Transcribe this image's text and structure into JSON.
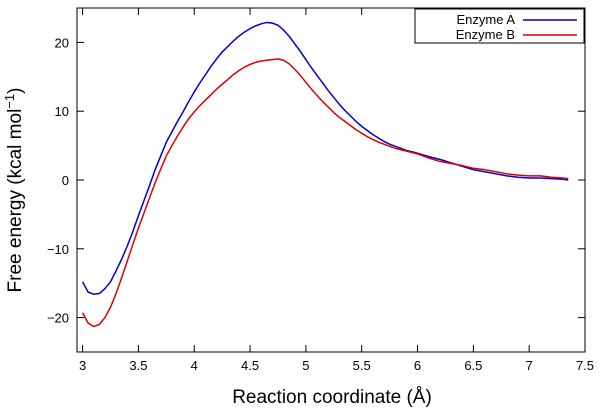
{
  "chart_data": {
    "type": "line",
    "title": "",
    "xlabel": "Reaction coordinate (Å)",
    "ylabel_main": "Free energy (kcal mol",
    "ylabel_sup": "−1",
    "ylabel_tail": ")",
    "xlim": [
      2.95,
      7.5
    ],
    "ylim": [
      -25,
      25
    ],
    "xticks": [
      3,
      3.5,
      4,
      4.5,
      5,
      5.5,
      6,
      6.5,
      7,
      7.5
    ],
    "xtick_labels": [
      "3",
      "3.5",
      "4",
      "4.5",
      "5",
      "5.5",
      "6",
      "6.5",
      "7",
      "7.5"
    ],
    "yticks": [
      -20,
      -10,
      0,
      10,
      20
    ],
    "ytick_labels": [
      "−20",
      "−10",
      "0",
      "10",
      "20"
    ],
    "grid": false,
    "legend_position": "top-right",
    "series": [
      {
        "name": "Enzyme A",
        "color": "#0000cc",
        "x": [
          3.0,
          3.05,
          3.1,
          3.15,
          3.2,
          3.25,
          3.3,
          3.35,
          3.4,
          3.45,
          3.5,
          3.55,
          3.6,
          3.65,
          3.7,
          3.75,
          3.8,
          3.85,
          3.9,
          3.95,
          4.0,
          4.05,
          4.1,
          4.15,
          4.2,
          4.25,
          4.3,
          4.35,
          4.4,
          4.45,
          4.5,
          4.55,
          4.6,
          4.65,
          4.7,
          4.75,
          4.8,
          4.85,
          4.9,
          4.95,
          5.0,
          5.05,
          5.1,
          5.15,
          5.2,
          5.25,
          5.3,
          5.35,
          5.4,
          5.45,
          5.5,
          5.55,
          5.6,
          5.65,
          5.7,
          5.75,
          5.8,
          5.85,
          5.9,
          5.95,
          6.0,
          6.1,
          6.2,
          6.3,
          6.4,
          6.5,
          6.6,
          6.7,
          6.8,
          6.9,
          7.0,
          7.1,
          7.2,
          7.3,
          7.35
        ],
        "y": [
          -14.8,
          -16.3,
          -16.6,
          -16.5,
          -15.8,
          -14.8,
          -13.2,
          -11.5,
          -9.6,
          -7.5,
          -5.2,
          -3.0,
          -0.8,
          1.5,
          3.5,
          5.5,
          7.0,
          8.5,
          9.9,
          11.4,
          12.8,
          14.1,
          15.3,
          16.5,
          17.6,
          18.6,
          19.4,
          20.2,
          20.9,
          21.5,
          22.0,
          22.4,
          22.7,
          22.9,
          22.8,
          22.5,
          21.8,
          20.9,
          19.8,
          18.7,
          17.5,
          16.3,
          15.2,
          14.1,
          13.0,
          12.0,
          11.0,
          10.1,
          9.3,
          8.5,
          7.8,
          7.2,
          6.6,
          6.1,
          5.6,
          5.2,
          4.9,
          4.6,
          4.3,
          4.1,
          3.9,
          3.4,
          3.0,
          2.5,
          2.0,
          1.5,
          1.2,
          0.9,
          0.6,
          0.4,
          0.3,
          0.3,
          0.2,
          0.1,
          0.0
        ]
      },
      {
        "name": "Enzyme B",
        "color": "#dd0000",
        "x": [
          3.0,
          3.05,
          3.1,
          3.15,
          3.2,
          3.25,
          3.3,
          3.35,
          3.4,
          3.45,
          3.5,
          3.55,
          3.6,
          3.65,
          3.7,
          3.75,
          3.8,
          3.85,
          3.9,
          3.95,
          4.0,
          4.05,
          4.1,
          4.15,
          4.2,
          4.25,
          4.3,
          4.35,
          4.4,
          4.45,
          4.5,
          4.55,
          4.6,
          4.65,
          4.7,
          4.75,
          4.8,
          4.85,
          4.9,
          4.95,
          5.0,
          5.05,
          5.1,
          5.15,
          5.2,
          5.25,
          5.3,
          5.35,
          5.4,
          5.45,
          5.5,
          5.55,
          5.6,
          5.65,
          5.7,
          5.75,
          5.8,
          5.85,
          5.9,
          5.95,
          6.0,
          6.1,
          6.2,
          6.3,
          6.4,
          6.5,
          6.6,
          6.7,
          6.8,
          6.9,
          7.0,
          7.1,
          7.2,
          7.3,
          7.35
        ],
        "y": [
          -19.3,
          -20.8,
          -21.3,
          -21.0,
          -20.0,
          -18.5,
          -16.5,
          -14.2,
          -11.8,
          -9.4,
          -7.0,
          -4.8,
          -2.6,
          -0.4,
          1.6,
          3.5,
          5.0,
          6.4,
          7.7,
          8.9,
          9.9,
          10.8,
          11.6,
          12.4,
          13.2,
          13.9,
          14.6,
          15.3,
          15.9,
          16.4,
          16.8,
          17.1,
          17.3,
          17.4,
          17.5,
          17.6,
          17.4,
          16.9,
          16.1,
          15.2,
          14.2,
          13.2,
          12.3,
          11.4,
          10.6,
          9.8,
          9.1,
          8.5,
          7.9,
          7.3,
          6.8,
          6.3,
          5.9,
          5.5,
          5.2,
          4.9,
          4.6,
          4.4,
          4.2,
          4.0,
          3.8,
          3.2,
          2.7,
          2.4,
          2.1,
          1.7,
          1.5,
          1.2,
          0.9,
          0.7,
          0.6,
          0.6,
          0.4,
          0.3,
          0.2
        ]
      }
    ]
  }
}
